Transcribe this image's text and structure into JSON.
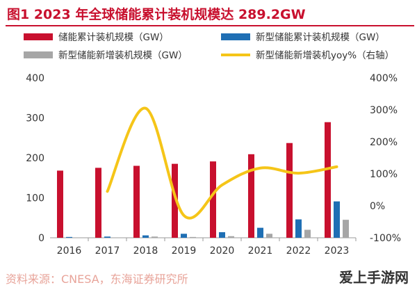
{
  "header": {
    "title": "图1  2023 年全球储能累计装机规模达 289.2GW"
  },
  "footer": {
    "source": "资料来源：CNESA，东海证券研究所"
  },
  "watermark": "爱上手游网",
  "chart_data": {
    "type": "bar",
    "categories": [
      "2016",
      "2017",
      "2018",
      "2019",
      "2020",
      "2021",
      "2022",
      "2023"
    ],
    "series": [
      {
        "name": "储能累计装机规模（GW）",
        "kind": "bar",
        "axis": "left",
        "color": "#c8102e",
        "values": [
          168,
          175,
          180,
          185,
          191,
          209,
          237,
          289.2
        ]
      },
      {
        "name": "新型储能累计装机规模（GW）",
        "kind": "bar",
        "axis": "left",
        "color": "#1f6fb4",
        "values": [
          2,
          3,
          6,
          10,
          14,
          25,
          46,
          91
        ]
      },
      {
        "name": "新型储能新增装机规模（GW）",
        "kind": "bar",
        "axis": "left",
        "color": "#a6a6a6",
        "values": [
          1,
          1,
          3,
          2,
          4,
          10,
          20,
          45
        ]
      },
      {
        "name": "新型储能新增装机yoy%（右轴）",
        "kind": "line",
        "axis": "right",
        "color": "#f5c518",
        "values": [
          null,
          45,
          305,
          -30,
          65,
          118,
          102,
          122
        ]
      }
    ],
    "yleft": {
      "ylim": [
        0,
        400
      ],
      "ticks": [
        "0",
        "100",
        "200",
        "300",
        "400"
      ]
    },
    "yright": {
      "ylim": [
        -100,
        400
      ],
      "ticks": [
        "-100%",
        "0%",
        "100%",
        "200%",
        "300%",
        "400%"
      ]
    },
    "grid": false,
    "legend": "top"
  }
}
